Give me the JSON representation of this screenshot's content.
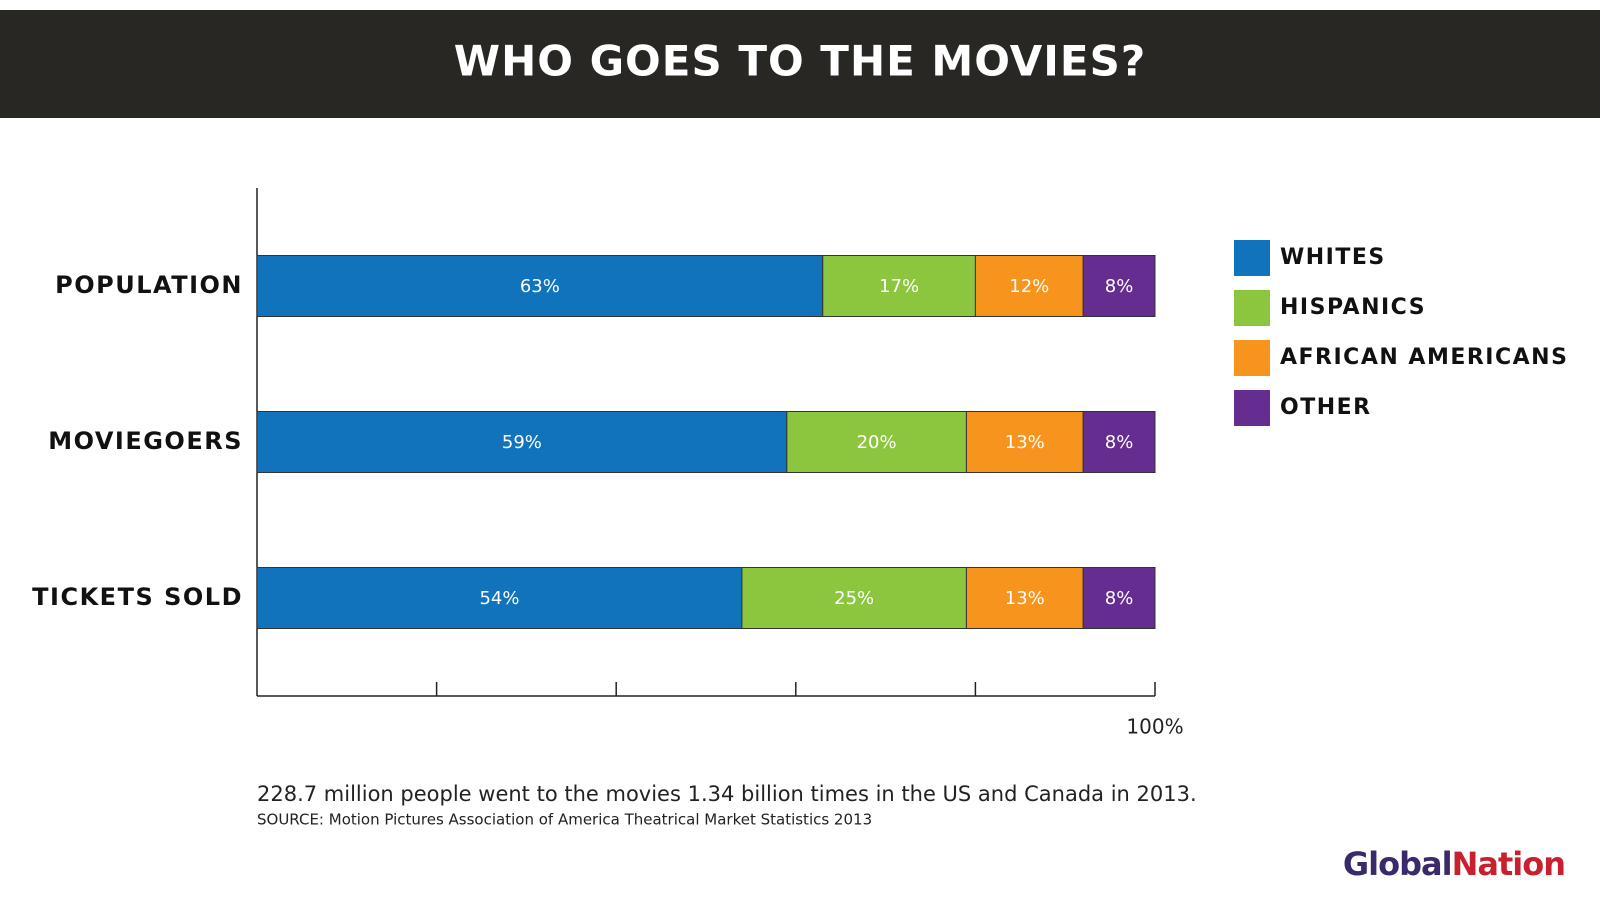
{
  "chart_data": {
    "type": "stacked-bar-horizontal",
    "title": "WHO GOES TO THE MOVIES?",
    "categories": [
      "POPULATION",
      "MOVIEGOERS",
      "TICKETS SOLD"
    ],
    "series": [
      {
        "name": "WHITES",
        "color": "#1273bd",
        "values": [
          63,
          59,
          54
        ],
        "value_labels": [
          "63%",
          "59%",
          "54%"
        ]
      },
      {
        "name": "HISPANICS",
        "color": "#8cc63f",
        "values": [
          17,
          20,
          25
        ],
        "value_labels": [
          "17%",
          "20%",
          "25%"
        ]
      },
      {
        "name": "AFRICAN AMERICANS",
        "color": "#f7941d",
        "values": [
          12,
          13,
          13
        ],
        "value_labels": [
          "12%",
          "13%",
          "13%"
        ]
      },
      {
        "name": "OTHER",
        "color": "#662d91",
        "values": [
          8,
          8,
          8
        ],
        "value_labels": [
          "8%",
          "8%",
          "8%"
        ]
      }
    ],
    "xlim": [
      0,
      100
    ],
    "xticks": [
      {
        "value": 20,
        "label": null
      },
      {
        "value": 40,
        "label": null
      },
      {
        "value": 60,
        "label": null
      },
      {
        "value": 80,
        "label": null
      },
      {
        "value": 100,
        "label": "100%"
      }
    ],
    "legend": "right",
    "note": "228.7 million people went to the movies 1.34 billion times in the US and Canada in 2013.",
    "source": "SOURCE: Motion Pictures Association of America Theatrical Market Statistics 2013",
    "logo": {
      "first": "Global",
      "second": "Nation"
    }
  }
}
